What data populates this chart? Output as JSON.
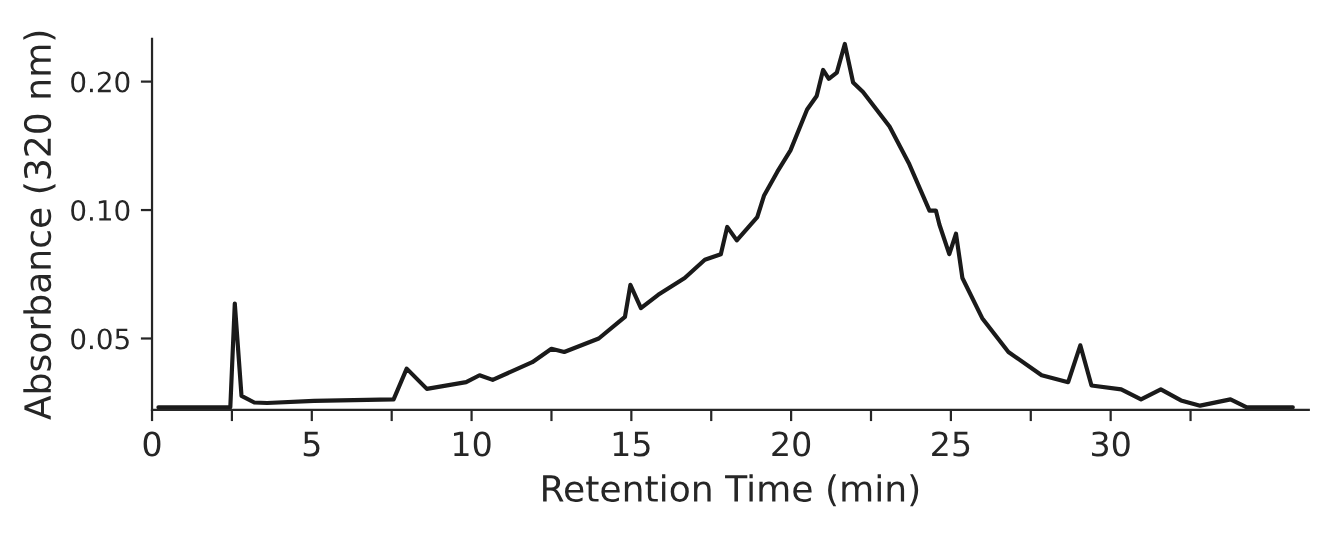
{
  "chart_data": {
    "type": "line",
    "xlabel": "Retention Time (min)",
    "ylabel": "Absorbance (320 nm)",
    "log": "y",
    "xlim": [
      0,
      36.2
    ],
    "ylim": [
      0.034,
      0.252
    ],
    "xticks": [
      0,
      {
        "value": 2.5,
        "label": null
      },
      5,
      {
        "value": 7.5,
        "label": null
      },
      10,
      {
        "value": 12.5,
        "label": null
      },
      15,
      {
        "value": 17.5,
        "label": null
      },
      20,
      {
        "value": 22.5,
        "label": null
      },
      25,
      {
        "value": 27.5,
        "label": null
      },
      30,
      {
        "value": 32.5,
        "label": null
      }
    ],
    "yticks": [
      0.05,
      {
        "value": 0.1,
        "label": "0.10"
      },
      {
        "value": 0.2,
        "label": "0.20"
      }
    ],
    "grid": false,
    "legend": false,
    "series": [
      {
        "color": "#1a1a1a",
        "x": [
          0.2,
          2.45,
          2.59,
          2.8,
          3.2,
          3.6,
          5.07,
          7.56,
          7.97,
          8.6,
          9.83,
          10.25,
          10.66,
          11.9,
          12.5,
          12.9,
          13.98,
          14.8,
          14.97,
          15.3,
          15.84,
          16.67,
          17.3,
          17.8,
          18.0,
          18.3,
          18.94,
          19.15,
          19.57,
          19.98,
          20.5,
          20.8,
          21.0,
          21.18,
          21.43,
          21.68,
          21.94,
          22.25,
          23.08,
          23.7,
          24.33,
          24.53,
          24.64,
          24.95,
          25.16,
          25.36,
          25.98,
          26.8,
          27.84,
          28.67,
          29.05,
          29.4,
          30.33,
          30.95,
          31.57,
          32.2,
          32.8,
          33.75,
          34.26,
          35.7
        ],
        "values": [
          0.0345,
          0.0345,
          0.0604,
          0.0367,
          0.0354,
          0.0353,
          0.0357,
          0.036,
          0.0425,
          0.0381,
          0.0395,
          0.041,
          0.04,
          0.044,
          0.0473,
          0.0465,
          0.05,
          0.0562,
          0.0668,
          0.0589,
          0.0633,
          0.0693,
          0.0765,
          0.0788,
          0.0913,
          0.0849,
          0.0962,
          0.108,
          0.123,
          0.138,
          0.172,
          0.185,
          0.213,
          0.203,
          0.21,
          0.245,
          0.199,
          0.189,
          0.157,
          0.128,
          0.0997,
          0.0997,
          0.0925,
          0.0788,
          0.088,
          0.0693,
          0.0558,
          0.0465,
          0.041,
          0.0395,
          0.0482,
          0.0388,
          0.038,
          0.036,
          0.038,
          0.0358,
          0.0348,
          0.036,
          0.0345,
          0.0345
        ]
      }
    ]
  }
}
